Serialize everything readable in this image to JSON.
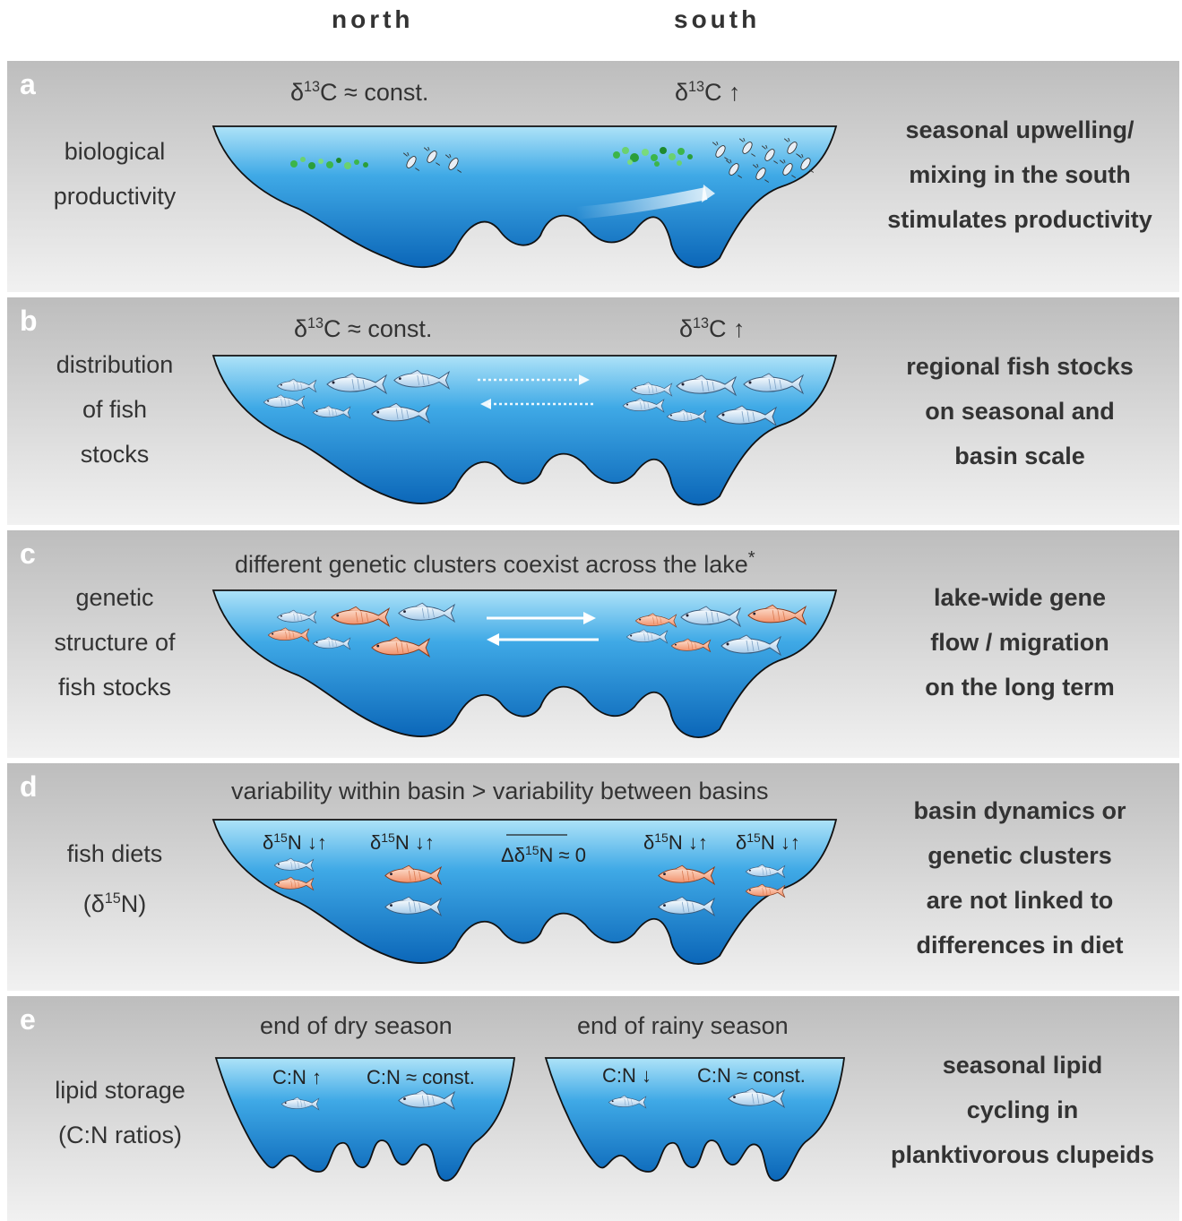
{
  "columns": {
    "north": "north",
    "south": "south"
  },
  "panels": {
    "a": {
      "letter": "a",
      "left": "biological productivity",
      "right": [
        "seasonal upwelling/",
        "mixing in the south",
        "stimulates productivity"
      ],
      "north_marker": "δ13C ≈ const.",
      "south_marker": "δ13C ↑"
    },
    "b": {
      "letter": "b",
      "left": [
        "distribution",
        "of fish",
        "stocks"
      ],
      "right": [
        "regional fish stocks",
        "on seasonal and",
        "basin scale"
      ],
      "north_marker": "δ13C ≈ const.",
      "south_marker": "δ13C ↑"
    },
    "c": {
      "letter": "c",
      "caption": "different genetic clusters coexist across the lake",
      "caption_mark": "*",
      "left": [
        "genetic",
        "structure of",
        "fish stocks"
      ],
      "right": [
        "lake-wide gene",
        "flow / migration",
        "on the long term"
      ]
    },
    "d": {
      "letter": "d",
      "caption": "variability within basin > variability between basins",
      "left": [
        "fish diets",
        "(δ15N)"
      ],
      "right": [
        "basin dynamics or",
        "genetic clusters",
        "are not linked to",
        "differences in diet"
      ],
      "n_label": "δ15N ↓↑",
      "delta_label": "Δδ15N ≈ 0"
    },
    "e": {
      "letter": "e",
      "left": [
        "lipid storage",
        "(C:N ratios)"
      ],
      "right": [
        "seasonal lipid",
        "cycling in",
        "planktivorous clupeids"
      ],
      "dry": "end of dry season",
      "rainy": "end of rainy season",
      "dry_small": "C:N ↑",
      "rainy_small": "C:N ↓",
      "const": "C:N ≈ const."
    }
  }
}
